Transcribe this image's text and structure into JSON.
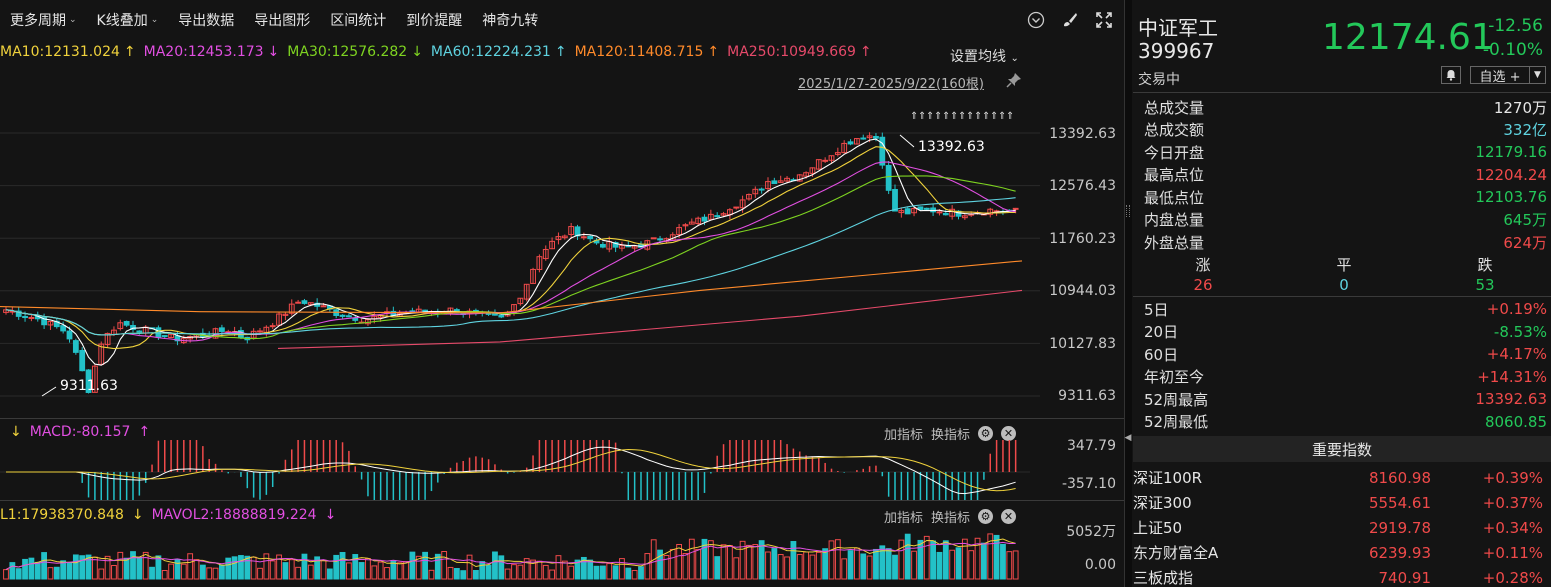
{
  "toolbar": {
    "items": [
      "更多周期",
      "K线叠加",
      "导出数据",
      "导出图形",
      "区间统计",
      "到价提醒",
      "神奇九转"
    ]
  },
  "ma_legend": [
    {
      "label": "MA10:12131.024",
      "arrow": "↑",
      "color": "#f0d23c"
    },
    {
      "label": "MA20:12453.173",
      "arrow": "↓",
      "color": "#e14fe1"
    },
    {
      "label": "MA30:12576.282",
      "arrow": "↓",
      "color": "#7ed321"
    },
    {
      "label": "MA60:12224.231",
      "arrow": "↑",
      "color": "#5fd3e0"
    },
    {
      "label": "MA120:11408.715",
      "arrow": "↑",
      "color": "#ff8a2a"
    },
    {
      "label": "MA250:10949.669",
      "arrow": "↑",
      "color": "#e64a6a"
    }
  ],
  "ma_settings": "设置均线",
  "date_range": "2025/1/27-2025/9/22(160根)",
  "price_axis": [
    "13392.63",
    "12576.43",
    "11760.23",
    "10944.03",
    "10127.83",
    "9311.63"
  ],
  "annotations": {
    "high": "13392.63",
    "low": "9311.63"
  },
  "macd": {
    "legend": "MACD:-80.157",
    "arrow_down": "↓",
    "arrow_up": "↑",
    "axis_top": "347.79",
    "axis_bottom": "-357.10"
  },
  "vol": {
    "legend1": "L1:17938370.848",
    "legend2": "MAVOL2:18888819.224",
    "arrow1": "↓",
    "arrow2": "↓",
    "axis_top": "5052万",
    "axis_bottom": "0.00"
  },
  "panel_ctrl": {
    "add": "加指标",
    "switch": "换指标"
  },
  "quote": {
    "name": "中证军工",
    "code": "399967",
    "price": "12174.61",
    "change": "-12.56",
    "change_pct": "-0.10%",
    "status": "交易中",
    "watch_label": "自选 +"
  },
  "stats": [
    {
      "label": "总成交量",
      "value": "1270万",
      "color": "#e6e6e6"
    },
    {
      "label": "总成交额",
      "value": "332亿",
      "color": "#5fd3e0"
    },
    {
      "label": "今日开盘",
      "value": "12179.16",
      "color": "#23c85a"
    },
    {
      "label": "最高点位",
      "value": "12204.24",
      "color": "#f04a4a"
    },
    {
      "label": "最低点位",
      "value": "12103.76",
      "color": "#23c85a"
    },
    {
      "label": "内盘总量",
      "value": "645万",
      "color": "#23c85a"
    },
    {
      "label": "外盘总量",
      "value": "624万",
      "color": "#f04a4a"
    }
  ],
  "breadth": {
    "up_label": "涨",
    "flat_label": "平",
    "down_label": "跌",
    "up": "26",
    "flat": "0",
    "down": "53"
  },
  "periods": [
    {
      "label": "5日",
      "value": "+0.19%",
      "color": "#f04a4a"
    },
    {
      "label": "20日",
      "value": "-8.53%",
      "color": "#23c85a"
    },
    {
      "label": "60日",
      "value": "+4.17%",
      "color": "#f04a4a"
    },
    {
      "label": "年初至今",
      "value": "+14.31%",
      "color": "#f04a4a"
    },
    {
      "label": "52周最高",
      "value": "13392.63",
      "color": "#f04a4a"
    },
    {
      "label": "52周最低",
      "value": "8060.85",
      "color": "#23c85a"
    }
  ],
  "key_indices": {
    "title": "重要指数",
    "rows": [
      {
        "name": "深证100R",
        "value": "8160.98",
        "pct": "+0.39%"
      },
      {
        "name": "深证300",
        "value": "5554.61",
        "pct": "+0.37%"
      },
      {
        "name": "上证50",
        "value": "2919.78",
        "pct": "+0.34%"
      },
      {
        "name": "东方财富全A",
        "value": "6239.93",
        "pct": "+0.11%"
      },
      {
        "name": "三板成指",
        "value": "740.91",
        "pct": "+0.28%"
      }
    ]
  },
  "colors": {
    "up": "#f04a4a",
    "down": "#23c1c8",
    "green": "#23c85a"
  }
}
